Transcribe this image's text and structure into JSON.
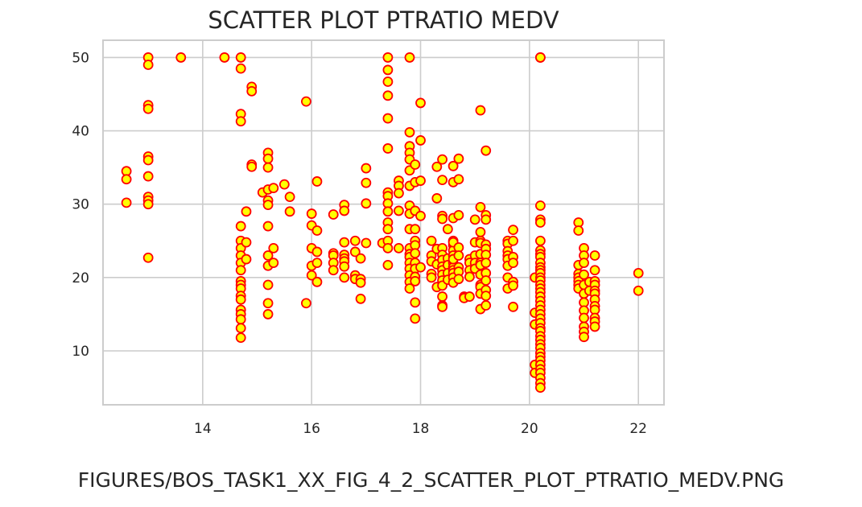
{
  "chart_data": {
    "type": "scatter",
    "title": "SCATTER PLOT PTRATIO MEDV",
    "xlabel": "",
    "ylabel": "",
    "xlim": [
      12.17,
      22.47
    ],
    "ylim": [
      2.65,
      52.35
    ],
    "xticks": [
      14,
      16,
      18,
      20,
      22
    ],
    "yticks": [
      10,
      20,
      30,
      40,
      50
    ],
    "grid": true,
    "marker": {
      "face_color": "#ffff00",
      "edge_color": "#ff0000"
    },
    "points": [
      [
        12.6,
        34.5
      ],
      [
        12.6,
        33.4
      ],
      [
        12.6,
        30.2
      ],
      [
        13.0,
        50.0
      ],
      [
        13.0,
        49.0
      ],
      [
        13.0,
        43.5
      ],
      [
        13.0,
        43.0
      ],
      [
        13.0,
        36.5
      ],
      [
        13.0,
        36.0
      ],
      [
        13.0,
        33.8
      ],
      [
        13.0,
        31.0
      ],
      [
        13.0,
        30.5
      ],
      [
        13.0,
        30.0
      ],
      [
        13.0,
        22.7
      ],
      [
        13.6,
        50.0
      ],
      [
        14.4,
        50.0
      ],
      [
        14.7,
        50.0
      ],
      [
        14.7,
        48.5
      ],
      [
        14.7,
        42.3
      ],
      [
        14.7,
        41.3
      ],
      [
        14.7,
        27.0
      ],
      [
        14.7,
        25.0
      ],
      [
        14.7,
        24.0
      ],
      [
        14.7,
        23.0
      ],
      [
        14.7,
        22.0
      ],
      [
        14.7,
        21.0
      ],
      [
        14.7,
        19.5
      ],
      [
        14.7,
        19.0
      ],
      [
        14.7,
        18.5
      ],
      [
        14.7,
        17.5
      ],
      [
        14.7,
        17.0
      ],
      [
        14.7,
        15.6
      ],
      [
        14.7,
        15.0
      ],
      [
        14.7,
        14.3
      ],
      [
        14.7,
        13.1
      ],
      [
        14.7,
        11.8
      ],
      [
        14.8,
        29.0
      ],
      [
        14.8,
        24.8
      ],
      [
        14.8,
        22.5
      ],
      [
        14.9,
        46.0
      ],
      [
        14.9,
        45.4
      ],
      [
        14.9,
        35.4
      ],
      [
        14.9,
        35.1
      ],
      [
        15.1,
        31.6
      ],
      [
        15.2,
        37.0
      ],
      [
        15.2,
        36.2
      ],
      [
        15.2,
        35.0
      ],
      [
        15.2,
        32.0
      ],
      [
        15.2,
        30.5
      ],
      [
        15.2,
        29.9
      ],
      [
        15.2,
        27.0
      ],
      [
        15.2,
        23.0
      ],
      [
        15.2,
        21.6
      ],
      [
        15.2,
        19.0
      ],
      [
        15.2,
        16.5
      ],
      [
        15.2,
        15.0
      ],
      [
        15.3,
        32.2
      ],
      [
        15.3,
        24.0
      ],
      [
        15.3,
        22.0
      ],
      [
        15.5,
        32.7
      ],
      [
        15.6,
        31.0
      ],
      [
        15.6,
        29.0
      ],
      [
        15.9,
        44.0
      ],
      [
        15.9,
        16.5
      ],
      [
        16.0,
        28.7
      ],
      [
        16.0,
        27.1
      ],
      [
        16.0,
        24.0
      ],
      [
        16.0,
        21.6
      ],
      [
        16.0,
        20.3
      ],
      [
        16.1,
        33.1
      ],
      [
        16.1,
        26.4
      ],
      [
        16.1,
        23.5
      ],
      [
        16.1,
        22.0
      ],
      [
        16.1,
        19.4
      ],
      [
        16.4,
        28.6
      ],
      [
        16.4,
        23.3
      ],
      [
        16.4,
        23.0
      ],
      [
        16.4,
        22.0
      ],
      [
        16.4,
        21.0
      ],
      [
        16.6,
        29.9
      ],
      [
        16.6,
        29.1
      ],
      [
        16.6,
        24.8
      ],
      [
        16.6,
        23.1
      ],
      [
        16.6,
        22.6
      ],
      [
        16.6,
        22.2
      ],
      [
        16.6,
        21.5
      ],
      [
        16.6,
        20.0
      ],
      [
        16.8,
        25.0
      ],
      [
        16.8,
        23.5
      ],
      [
        16.8,
        20.3
      ],
      [
        16.8,
        19.8
      ],
      [
        16.9,
        22.6
      ],
      [
        16.9,
        19.8
      ],
      [
        16.9,
        19.3
      ],
      [
        16.9,
        17.1
      ],
      [
        17.0,
        34.9
      ],
      [
        17.0,
        32.9
      ],
      [
        17.0,
        30.1
      ],
      [
        17.0,
        24.7
      ],
      [
        17.3,
        24.7
      ],
      [
        17.4,
        50.0
      ],
      [
        17.4,
        48.3
      ],
      [
        17.4,
        46.7
      ],
      [
        17.4,
        44.8
      ],
      [
        17.4,
        41.7
      ],
      [
        17.4,
        37.6
      ],
      [
        17.4,
        31.6
      ],
      [
        17.4,
        31.1
      ],
      [
        17.4,
        30.1
      ],
      [
        17.4,
        29.0
      ],
      [
        17.4,
        27.5
      ],
      [
        17.4,
        26.6
      ],
      [
        17.4,
        25.0
      ],
      [
        17.4,
        24.0
      ],
      [
        17.4,
        21.7
      ],
      [
        17.6,
        33.2
      ],
      [
        17.6,
        32.5
      ],
      [
        17.6,
        31.5
      ],
      [
        17.6,
        29.1
      ],
      [
        17.6,
        24.0
      ],
      [
        17.8,
        50.0
      ],
      [
        17.8,
        39.8
      ],
      [
        17.8,
        37.9
      ],
      [
        17.8,
        37.0
      ],
      [
        17.8,
        36.1
      ],
      [
        17.8,
        34.6
      ],
      [
        17.8,
        32.5
      ],
      [
        17.8,
        29.8
      ],
      [
        17.8,
        28.7
      ],
      [
        17.8,
        26.6
      ],
      [
        17.8,
        24.0
      ],
      [
        17.8,
        23.2
      ],
      [
        17.8,
        22.8
      ],
      [
        17.8,
        22.0
      ],
      [
        17.8,
        21.2
      ],
      [
        17.8,
        20.3
      ],
      [
        17.8,
        19.4
      ],
      [
        17.8,
        18.5
      ],
      [
        17.9,
        35.4
      ],
      [
        17.9,
        33.0
      ],
      [
        17.9,
        29.1
      ],
      [
        17.9,
        26.6
      ],
      [
        17.9,
        25.0
      ],
      [
        17.9,
        24.4
      ],
      [
        17.9,
        23.3
      ],
      [
        17.9,
        22.0
      ],
      [
        17.9,
        21.2
      ],
      [
        17.9,
        20.1
      ],
      [
        17.9,
        19.5
      ],
      [
        17.9,
        16.6
      ],
      [
        17.9,
        14.4
      ],
      [
        18.0,
        43.8
      ],
      [
        18.0,
        38.7
      ],
      [
        18.0,
        33.2
      ],
      [
        18.0,
        28.4
      ],
      [
        18.0,
        21.4
      ],
      [
        18.2,
        25.0
      ],
      [
        18.2,
        23.0
      ],
      [
        18.2,
        22.2
      ],
      [
        18.2,
        20.5
      ],
      [
        18.2,
        20.0
      ],
      [
        18.3,
        35.1
      ],
      [
        18.3,
        30.8
      ],
      [
        18.3,
        23.9
      ],
      [
        18.3,
        21.8
      ],
      [
        18.3,
        18.7
      ],
      [
        18.4,
        36.1
      ],
      [
        18.4,
        33.3
      ],
      [
        18.4,
        28.4
      ],
      [
        18.4,
        28.0
      ],
      [
        18.4,
        24.0
      ],
      [
        18.4,
        23.1
      ],
      [
        18.4,
        22.4
      ],
      [
        18.4,
        21.5
      ],
      [
        18.4,
        21.0
      ],
      [
        18.4,
        20.4
      ],
      [
        18.4,
        19.6
      ],
      [
        18.4,
        18.9
      ],
      [
        18.4,
        17.4
      ],
      [
        18.4,
        16.2
      ],
      [
        18.4,
        16.0
      ],
      [
        18.5,
        26.6
      ],
      [
        18.5,
        22.6
      ],
      [
        18.5,
        21.7
      ],
      [
        18.5,
        20.6
      ],
      [
        18.5,
        19.7
      ],
      [
        18.6,
        35.2
      ],
      [
        18.6,
        33.0
      ],
      [
        18.6,
        28.1
      ],
      [
        18.6,
        25.0
      ],
      [
        18.6,
        24.4
      ],
      [
        18.6,
        23.7
      ],
      [
        18.6,
        23.0
      ],
      [
        18.6,
        22.0
      ],
      [
        18.6,
        21.4
      ],
      [
        18.6,
        21.0
      ],
      [
        18.6,
        20.6
      ],
      [
        18.6,
        20.0
      ],
      [
        18.6,
        19.3
      ],
      [
        18.6,
        24.8
      ],
      [
        18.6,
        22.5
      ],
      [
        18.7,
        36.2
      ],
      [
        18.7,
        33.4
      ],
      [
        18.7,
        28.5
      ],
      [
        18.7,
        24.1
      ],
      [
        18.7,
        23.0
      ],
      [
        18.7,
        21.4
      ],
      [
        18.7,
        20.8
      ],
      [
        18.7,
        19.8
      ],
      [
        18.8,
        17.4
      ],
      [
        18.8,
        17.2
      ],
      [
        18.9,
        22.5
      ],
      [
        18.9,
        22.0
      ],
      [
        18.9,
        21.0
      ],
      [
        18.9,
        20.1
      ],
      [
        18.9,
        17.4
      ],
      [
        19.0,
        27.9
      ],
      [
        19.0,
        24.8
      ],
      [
        19.0,
        23.0
      ],
      [
        19.0,
        22.0
      ],
      [
        19.0,
        21.2
      ],
      [
        19.1,
        42.8
      ],
      [
        19.1,
        29.6
      ],
      [
        19.1,
        26.2
      ],
      [
        19.1,
        25.0
      ],
      [
        19.1,
        24.7
      ],
      [
        19.1,
        23.2
      ],
      [
        19.1,
        22.0
      ],
      [
        19.1,
        21.7
      ],
      [
        19.1,
        20.4
      ],
      [
        19.1,
        19.0
      ],
      [
        19.1,
        18.7
      ],
      [
        19.1,
        17.8
      ],
      [
        19.1,
        15.7
      ],
      [
        19.2,
        37.3
      ],
      [
        19.2,
        28.5
      ],
      [
        19.2,
        27.9
      ],
      [
        19.2,
        24.5
      ],
      [
        19.2,
        23.9
      ],
      [
        19.2,
        23.1
      ],
      [
        19.2,
        22.0
      ],
      [
        19.2,
        20.6
      ],
      [
        19.2,
        19.6
      ],
      [
        19.2,
        18.3
      ],
      [
        19.2,
        17.5
      ],
      [
        19.2,
        16.2
      ],
      [
        19.6,
        25.0
      ],
      [
        19.6,
        24.6
      ],
      [
        19.6,
        23.6
      ],
      [
        19.6,
        23.0
      ],
      [
        19.6,
        22.5
      ],
      [
        19.6,
        21.6
      ],
      [
        19.6,
        20.0
      ],
      [
        19.6,
        18.5
      ],
      [
        19.7,
        26.5
      ],
      [
        19.7,
        25.0
      ],
      [
        19.7,
        22.8
      ],
      [
        19.7,
        22.0
      ],
      [
        19.7,
        19.4
      ],
      [
        19.7,
        18.9
      ],
      [
        19.7,
        16.0
      ],
      [
        20.1,
        20.0
      ],
      [
        20.1,
        15.2
      ],
      [
        20.1,
        13.6
      ],
      [
        20.1,
        8.1
      ],
      [
        20.1,
        7.0
      ],
      [
        20.2,
        50.0
      ],
      [
        20.2,
        50.0
      ],
      [
        20.2,
        29.8
      ],
      [
        20.2,
        27.9
      ],
      [
        20.2,
        27.5
      ],
      [
        20.2,
        25.0
      ],
      [
        20.2,
        23.7
      ],
      [
        20.2,
        23.2
      ],
      [
        20.2,
        22.8
      ],
      [
        20.2,
        22.0
      ],
      [
        20.2,
        21.4
      ],
      [
        20.2,
        21.0
      ],
      [
        20.2,
        20.6
      ],
      [
        20.2,
        20.0
      ],
      [
        20.2,
        19.6
      ],
      [
        20.2,
        19.0
      ],
      [
        20.2,
        18.5
      ],
      [
        20.2,
        18.0
      ],
      [
        20.2,
        17.4
      ],
      [
        20.2,
        16.8
      ],
      [
        20.2,
        16.2
      ],
      [
        20.2,
        15.6
      ],
      [
        20.2,
        15.0
      ],
      [
        20.2,
        14.4
      ],
      [
        20.2,
        13.8
      ],
      [
        20.2,
        13.1
      ],
      [
        20.2,
        12.7
      ],
      [
        20.2,
        12.0
      ],
      [
        20.2,
        11.5
      ],
      [
        20.2,
        10.9
      ],
      [
        20.2,
        10.4
      ],
      [
        20.2,
        9.7
      ],
      [
        20.2,
        9.2
      ],
      [
        20.2,
        8.7
      ],
      [
        20.2,
        8.1
      ],
      [
        20.2,
        7.5
      ],
      [
        20.2,
        7.0
      ],
      [
        20.2,
        6.3
      ],
      [
        20.2,
        5.6
      ],
      [
        20.2,
        5.0
      ],
      [
        20.9,
        27.5
      ],
      [
        20.9,
        26.4
      ],
      [
        20.9,
        21.7
      ],
      [
        20.9,
        20.5
      ],
      [
        20.9,
        20.0
      ],
      [
        20.9,
        19.5
      ],
      [
        20.9,
        19.0
      ],
      [
        20.9,
        18.5
      ],
      [
        21.0,
        24.0
      ],
      [
        21.0,
        23.0
      ],
      [
        21.0,
        22.0
      ],
      [
        21.0,
        20.4
      ],
      [
        21.0,
        19.0
      ],
      [
        21.0,
        17.8
      ],
      [
        21.0,
        16.6
      ],
      [
        21.0,
        15.5
      ],
      [
        21.0,
        14.5
      ],
      [
        21.0,
        13.3
      ],
      [
        21.0,
        12.6
      ],
      [
        21.0,
        11.9
      ],
      [
        21.1,
        19.4
      ],
      [
        21.1,
        18.2
      ],
      [
        21.2,
        23.0
      ],
      [
        21.2,
        21.0
      ],
      [
        21.2,
        19.5
      ],
      [
        21.2,
        19.0
      ],
      [
        21.2,
        18.2
      ],
      [
        21.2,
        17.8
      ],
      [
        21.2,
        17.0
      ],
      [
        21.2,
        16.1
      ],
      [
        21.2,
        15.6
      ],
      [
        21.2,
        14.5
      ],
      [
        21.2,
        14.0
      ],
      [
        21.2,
        13.3
      ],
      [
        22.0,
        20.6
      ],
      [
        22.0,
        18.2
      ]
    ]
  },
  "caption": "FIGURES/BOS_TASK1_XX_FIG_4_2_SCATTER_PLOT_PTRATIO_MEDV.PNG"
}
